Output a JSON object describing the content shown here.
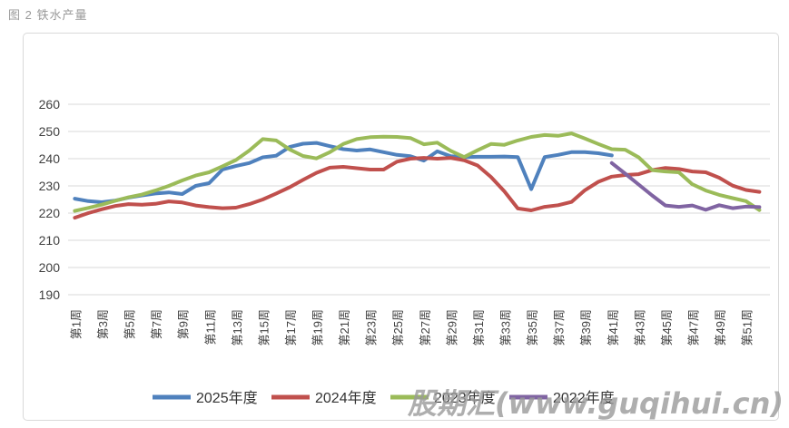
{
  "title": "图 2 铁水产量",
  "watermark": {
    "text": "股期汇(www.guqihui.cn)"
  },
  "chart_data": {
    "type": "line",
    "title": "图 2 铁水产量",
    "xlabel": "",
    "ylabel": "",
    "ylim": [
      190,
      260
    ],
    "y_ticks": [
      190,
      200,
      210,
      220,
      230,
      240,
      250,
      260
    ],
    "weeks_total": 52,
    "x_tick_weeks": [
      1,
      3,
      5,
      7,
      9,
      11,
      13,
      15,
      17,
      19,
      21,
      23,
      25,
      27,
      29,
      31,
      33,
      35,
      37,
      39,
      41,
      43,
      45,
      47,
      49,
      51
    ],
    "x_tick_labels": [
      "第1周",
      "第3周",
      "第5周",
      "第7周",
      "第9周",
      "第11周",
      "第13周",
      "第15周",
      "第17周",
      "第19周",
      "第21周",
      "第23周",
      "第25周",
      "第27周",
      "第29周",
      "第31周",
      "第33周",
      "第35周",
      "第37周",
      "第39周",
      "第41周",
      "第43周",
      "第45周",
      "第47周",
      "第49周",
      "第51周"
    ],
    "grid": true,
    "legend_position": "bottom",
    "series": [
      {
        "name": "2025年度",
        "color": "#4F81BD",
        "start_week": 1,
        "values": [
          225.3,
          224.4,
          224,
          224.6,
          225.7,
          226.5,
          227.2,
          227.6,
          227,
          230,
          231,
          236,
          237.3,
          238.4,
          240.5,
          241.1,
          244.3,
          245.5,
          245.8,
          244.6,
          243.5,
          243,
          243.4,
          242.4,
          241.4,
          240.9,
          239.3,
          242.7,
          240.9,
          240.6,
          240.7,
          240.7,
          240.8,
          240.6,
          228.8,
          240.6,
          241.4,
          242.4,
          242.4,
          242,
          241.2
        ]
      },
      {
        "name": "2024年度",
        "color": "#C0504D",
        "start_week": 1,
        "values": [
          218.3,
          220,
          221.4,
          222.6,
          223.3,
          223.1,
          223.4,
          224.3,
          223.9,
          222.8,
          222.2,
          221.8,
          222,
          223.3,
          225,
          227.2,
          229.5,
          232.2,
          234.8,
          236.7,
          237,
          236.5,
          236,
          236,
          238.9,
          240,
          240.3,
          240,
          240.3,
          239.4,
          237.5,
          233.3,
          228,
          221.7,
          221,
          222.3,
          222.9,
          224.1,
          228.4,
          231.5,
          233.4,
          234,
          234.3,
          235.8,
          236.6,
          236.2,
          235.3,
          235,
          233,
          230.1,
          228.5,
          227.8
        ]
      },
      {
        "name": "2023年度",
        "color": "#9BBB59",
        "start_week": 1,
        "values": [
          220.8,
          221.9,
          223.1,
          224.5,
          225.8,
          226.8,
          228.3,
          230,
          232,
          233.8,
          235,
          237.2,
          239.5,
          243,
          247.2,
          246.7,
          243.4,
          241,
          240.1,
          242.4,
          245.4,
          247.2,
          247.9,
          248.1,
          248,
          247.6,
          245.3,
          245.9,
          242.9,
          240.6,
          243.1,
          245.4,
          245.1,
          246.7,
          248,
          248.7,
          248.4,
          249.3,
          247.4,
          245.4,
          243.5,
          243.3,
          240.5,
          235.8,
          235.3,
          235,
          230.6,
          228.3,
          226.7,
          225.5,
          224.4,
          221.1
        ]
      },
      {
        "name": "2022年度",
        "color": "#8064A2",
        "start_week": 41,
        "values": [
          238.4,
          234.5,
          230.5,
          226.5,
          222.8,
          222.3,
          222.8,
          221.2,
          222.9,
          221.8,
          222.4,
          222.2
        ]
      }
    ]
  }
}
